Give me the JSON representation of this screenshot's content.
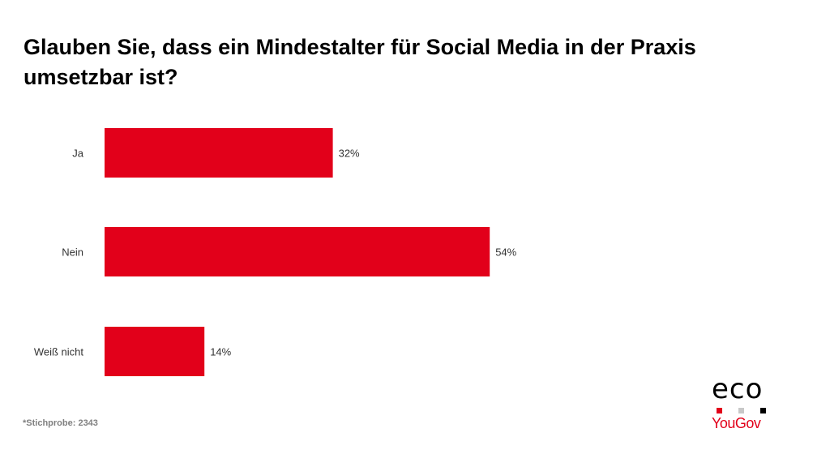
{
  "chart_data": {
    "type": "bar",
    "orientation": "horizontal",
    "title": "Glauben Sie, dass ein Mindestalter für Social Media in der Praxis umsetzbar ist?",
    "categories": [
      "Ja",
      "Nein",
      "Weiß nicht"
    ],
    "values": [
      32,
      54,
      14
    ],
    "data_labels": [
      "32%",
      "54%",
      "14%"
    ],
    "unit": "%",
    "bar_color": "#e2001a",
    "grid": false
  },
  "footnote": "*Stichprobe: 2343",
  "logo": {
    "eco": "eco",
    "yougov": "YouGov",
    "dot_colors": [
      "#e2001a",
      "#c8c8c8",
      "#000000"
    ]
  }
}
